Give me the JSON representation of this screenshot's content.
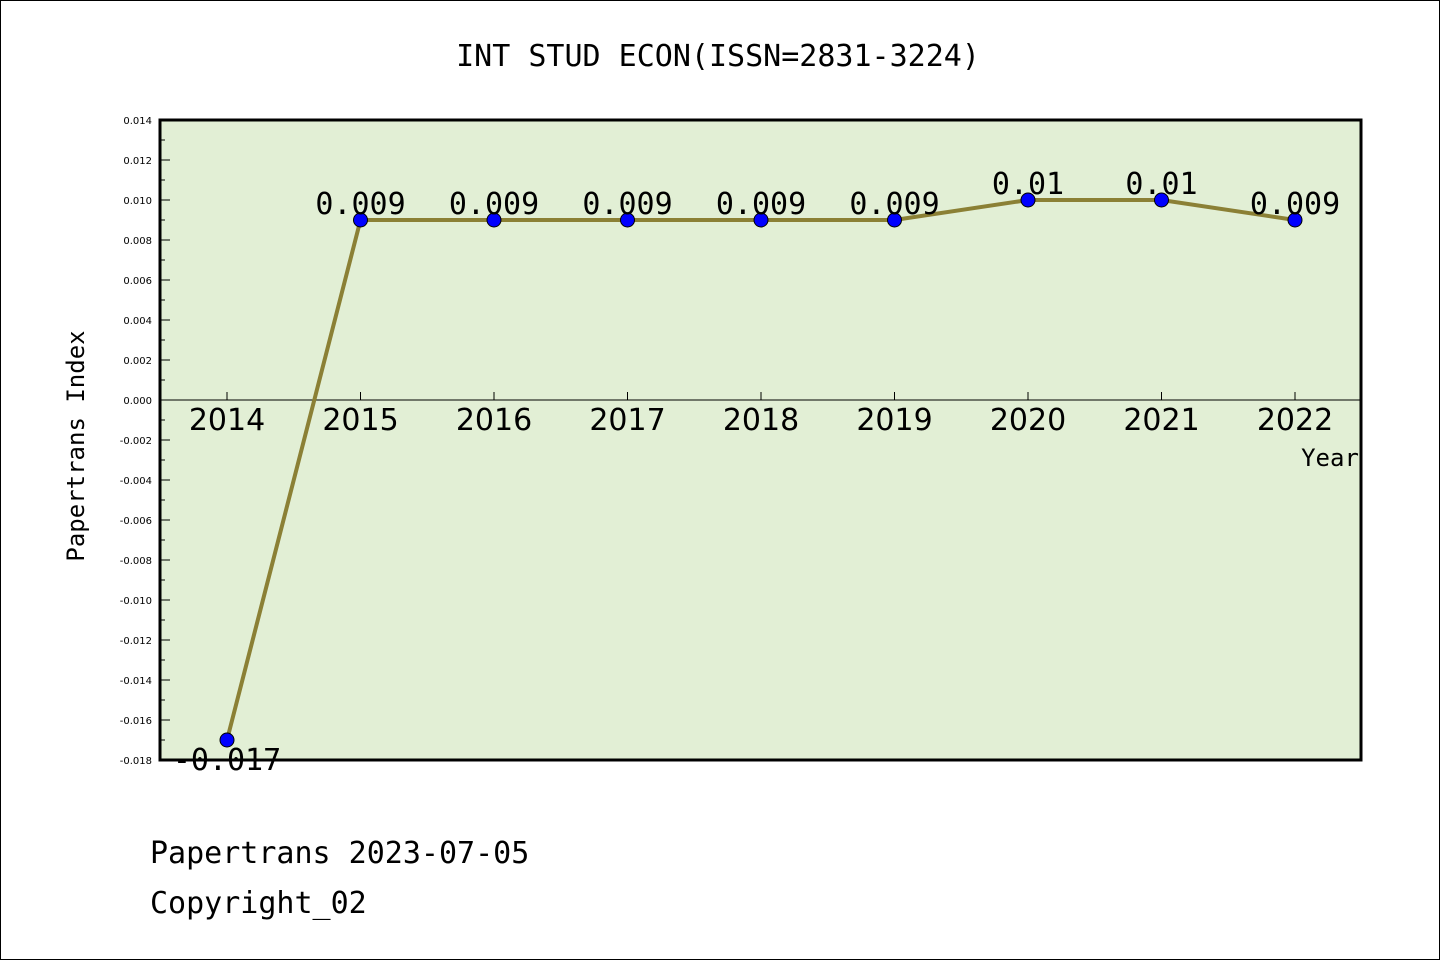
{
  "chart_data": {
    "type": "line",
    "title": "INT STUD ECON(ISSN=2831-3224)",
    "xlabel": "Year",
    "ylabel": "Papertrans Index",
    "x": [
      "2014",
      "2015",
      "2016",
      "2017",
      "2018",
      "2019",
      "2020",
      "2021",
      "2022"
    ],
    "series": [
      {
        "values": [
          -0.017,
          0.009,
          0.009,
          0.009,
          0.009,
          0.009,
          0.01,
          0.01,
          0.009
        ],
        "labels": [
          "-0.017",
          "0.009",
          "0.009",
          "0.009",
          "0.009",
          "0.009",
          "0.01",
          "0.01",
          "0.009"
        ]
      }
    ],
    "ylim": [
      -0.018,
      0.014
    ],
    "yticks": [
      "0.014",
      "0.012",
      "0.010",
      "0.008",
      "0.006",
      "0.004",
      "0.002",
      "0.000",
      "-0.002",
      "-0.004",
      "-0.006",
      "-0.008",
      "-0.010",
      "-0.012",
      "-0.014",
      "-0.016",
      "-0.018"
    ],
    "grid": false,
    "legend": "none",
    "colors": {
      "plot_background": "#e2efd5",
      "line": "#8b8035",
      "marker": "#0000ff"
    }
  },
  "footer": {
    "source": "Papertrans 2023-07-05",
    "copyright": "Copyright_02"
  }
}
